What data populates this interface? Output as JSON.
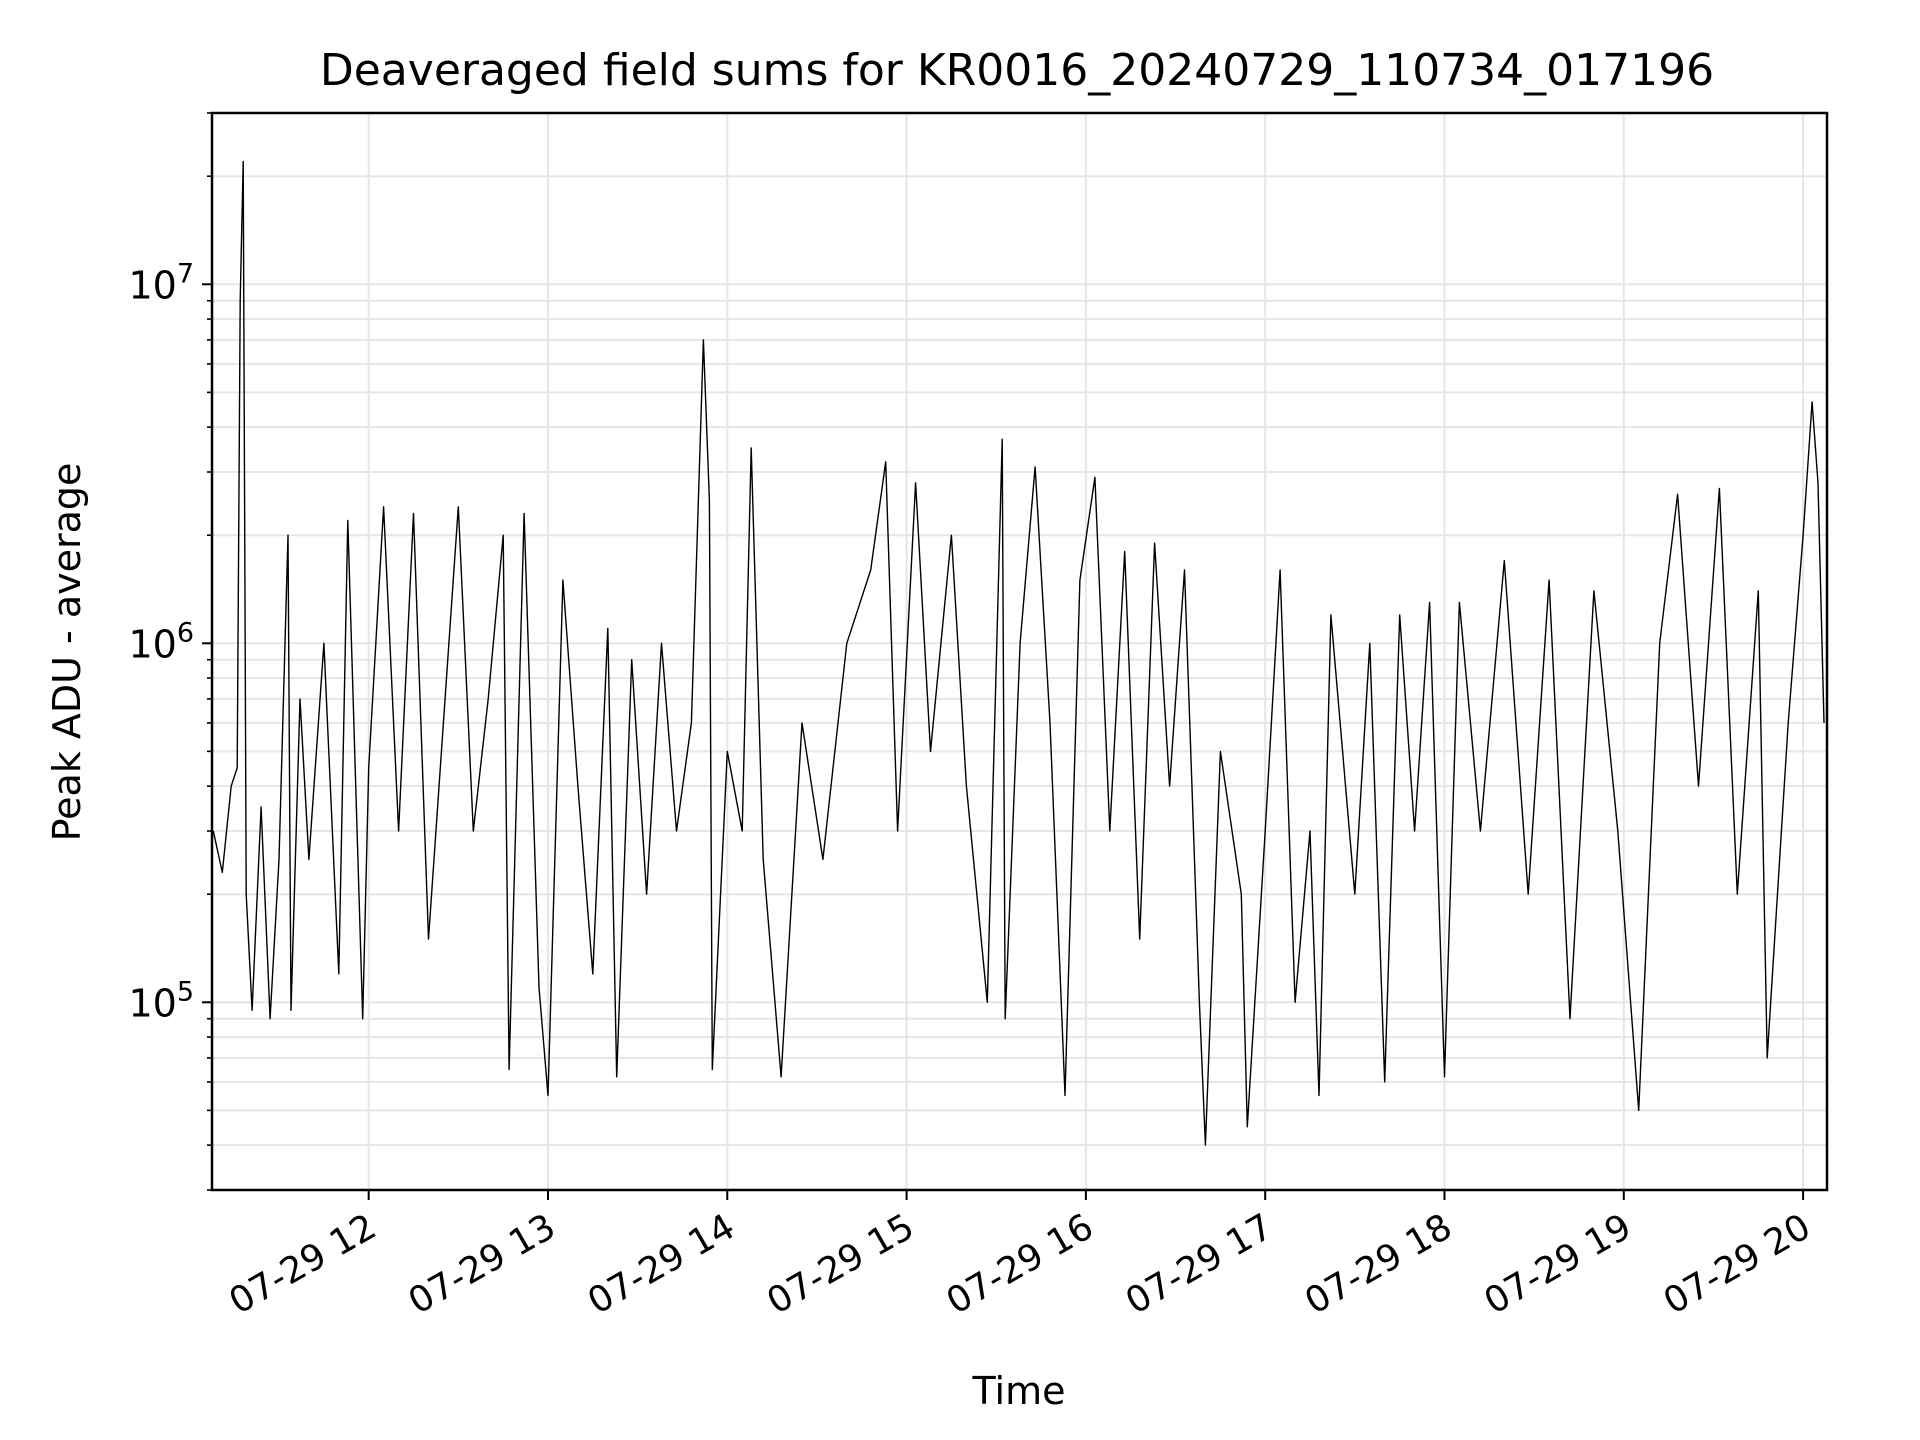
{
  "chart_data": {
    "type": "line",
    "title": "Deaveraged field sums for KR0016_20240729_110734_017196",
    "xlabel": "Time",
    "ylabel": "Peak ADU - average",
    "x_axis": {
      "type": "time",
      "range": [
        "2024-07-29 11:07:34",
        "2024-07-29 20:08:00"
      ],
      "ticks": [
        {
          "time": "2024-07-29 12:00",
          "label": "07-29 12"
        },
        {
          "time": "2024-07-29 13:00",
          "label": "07-29 13"
        },
        {
          "time": "2024-07-29 14:00",
          "label": "07-29 14"
        },
        {
          "time": "2024-07-29 15:00",
          "label": "07-29 15"
        },
        {
          "time": "2024-07-29 16:00",
          "label": "07-29 16"
        },
        {
          "time": "2024-07-29 17:00",
          "label": "07-29 17"
        },
        {
          "time": "2024-07-29 18:00",
          "label": "07-29 18"
        },
        {
          "time": "2024-07-29 19:00",
          "label": "07-29 19"
        },
        {
          "time": "2024-07-29 20:00",
          "label": "07-29 20"
        }
      ]
    },
    "y_axis": {
      "scale": "log",
      "range": [
        30000,
        30000000
      ],
      "ticks": [
        {
          "value": 100000,
          "base": "10",
          "exp": "5"
        },
        {
          "value": 1000000,
          "base": "10",
          "exp": "6"
        },
        {
          "value": 10000000,
          "base": "10",
          "exp": "7"
        }
      ]
    },
    "grid": true,
    "series": [
      {
        "color": "#000000",
        "points": [
          [
            "2024-07-29 11:08",
            300000
          ],
          [
            "2024-07-29 11:11",
            230000
          ],
          [
            "2024-07-29 11:14",
            400000
          ],
          [
            "2024-07-29 11:16",
            450000
          ],
          [
            "2024-07-29 11:17",
            9000000
          ],
          [
            "2024-07-29 11:18",
            22000000
          ],
          [
            "2024-07-29 11:19",
            200000
          ],
          [
            "2024-07-29 11:21",
            95000
          ],
          [
            "2024-07-29 11:24",
            350000
          ],
          [
            "2024-07-29 11:27",
            90000
          ],
          [
            "2024-07-29 11:30",
            250000
          ],
          [
            "2024-07-29 11:33",
            2000000
          ],
          [
            "2024-07-29 11:34",
            95000
          ],
          [
            "2024-07-29 11:37",
            700000
          ],
          [
            "2024-07-29 11:40",
            250000
          ],
          [
            "2024-07-29 11:45",
            1000000
          ],
          [
            "2024-07-29 11:50",
            120000
          ],
          [
            "2024-07-29 11:53",
            2200000
          ],
          [
            "2024-07-29 11:58",
            90000
          ],
          [
            "2024-07-29 12:00",
            450000
          ],
          [
            "2024-07-29 12:05",
            2400000
          ],
          [
            "2024-07-29 12:10",
            300000
          ],
          [
            "2024-07-29 12:15",
            2300000
          ],
          [
            "2024-07-29 12:20",
            150000
          ],
          [
            "2024-07-29 12:25",
            600000
          ],
          [
            "2024-07-29 12:30",
            2400000
          ],
          [
            "2024-07-29 12:35",
            300000
          ],
          [
            "2024-07-29 12:40",
            700000
          ],
          [
            "2024-07-29 12:45",
            2000000
          ],
          [
            "2024-07-29 12:47",
            65000
          ],
          [
            "2024-07-29 12:52",
            2300000
          ],
          [
            "2024-07-29 12:57",
            110000
          ],
          [
            "2024-07-29 13:00",
            55000
          ],
          [
            "2024-07-29 13:05",
            1500000
          ],
          [
            "2024-07-29 13:10",
            400000
          ],
          [
            "2024-07-29 13:15",
            120000
          ],
          [
            "2024-07-29 13:20",
            1100000
          ],
          [
            "2024-07-29 13:23",
            62000
          ],
          [
            "2024-07-29 13:28",
            900000
          ],
          [
            "2024-07-29 13:33",
            200000
          ],
          [
            "2024-07-29 13:38",
            1000000
          ],
          [
            "2024-07-29 13:43",
            300000
          ],
          [
            "2024-07-29 13:48",
            600000
          ],
          [
            "2024-07-29 13:52",
            7000000
          ],
          [
            "2024-07-29 13:54",
            2500000
          ],
          [
            "2024-07-29 13:55",
            65000
          ],
          [
            "2024-07-29 14:00",
            500000
          ],
          [
            "2024-07-29 14:05",
            300000
          ],
          [
            "2024-07-29 14:08",
            3500000
          ],
          [
            "2024-07-29 14:12",
            250000
          ],
          [
            "2024-07-29 14:18",
            62000
          ],
          [
            "2024-07-29 14:25",
            600000
          ],
          [
            "2024-07-29 14:32",
            250000
          ],
          [
            "2024-07-29 14:40",
            1000000
          ],
          [
            "2024-07-29 14:48",
            1600000
          ],
          [
            "2024-07-29 14:53",
            3200000
          ],
          [
            "2024-07-29 14:57",
            300000
          ],
          [
            "2024-07-29 15:03",
            2800000
          ],
          [
            "2024-07-29 15:08",
            500000
          ],
          [
            "2024-07-29 15:15",
            2000000
          ],
          [
            "2024-07-29 15:20",
            400000
          ],
          [
            "2024-07-29 15:27",
            100000
          ],
          [
            "2024-07-29 15:32",
            3700000
          ],
          [
            "2024-07-29 15:33",
            90000
          ],
          [
            "2024-07-29 15:38",
            1000000
          ],
          [
            "2024-07-29 15:43",
            3100000
          ],
          [
            "2024-07-29 15:48",
            600000
          ],
          [
            "2024-07-29 15:53",
            55000
          ],
          [
            "2024-07-29 15:58",
            1500000
          ],
          [
            "2024-07-29 16:03",
            2900000
          ],
          [
            "2024-07-29 16:08",
            300000
          ],
          [
            "2024-07-29 16:13",
            1800000
          ],
          [
            "2024-07-29 16:18",
            150000
          ],
          [
            "2024-07-29 16:23",
            1900000
          ],
          [
            "2024-07-29 16:28",
            400000
          ],
          [
            "2024-07-29 16:33",
            1600000
          ],
          [
            "2024-07-29 16:38",
            100000
          ],
          [
            "2024-07-29 16:40",
            40000
          ],
          [
            "2024-07-29 16:45",
            500000
          ],
          [
            "2024-07-29 16:52",
            200000
          ],
          [
            "2024-07-29 16:54",
            45000
          ],
          [
            "2024-07-29 17:00",
            300000
          ],
          [
            "2024-07-29 17:05",
            1600000
          ],
          [
            "2024-07-29 17:10",
            100000
          ],
          [
            "2024-07-29 17:15",
            300000
          ],
          [
            "2024-07-29 17:18",
            55000
          ],
          [
            "2024-07-29 17:22",
            1200000
          ],
          [
            "2024-07-29 17:30",
            200000
          ],
          [
            "2024-07-29 17:35",
            1000000
          ],
          [
            "2024-07-29 17:40",
            60000
          ],
          [
            "2024-07-29 17:45",
            1200000
          ],
          [
            "2024-07-29 17:50",
            300000
          ],
          [
            "2024-07-29 17:55",
            1300000
          ],
          [
            "2024-07-29 18:00",
            62000
          ],
          [
            "2024-07-29 18:05",
            1300000
          ],
          [
            "2024-07-29 18:12",
            300000
          ],
          [
            "2024-07-29 18:20",
            1700000
          ],
          [
            "2024-07-29 18:28",
            200000
          ],
          [
            "2024-07-29 18:35",
            1500000
          ],
          [
            "2024-07-29 18:42",
            90000
          ],
          [
            "2024-07-29 18:50",
            1400000
          ],
          [
            "2024-07-29 18:58",
            300000
          ],
          [
            "2024-07-29 19:05",
            50000
          ],
          [
            "2024-07-29 19:12",
            1000000
          ],
          [
            "2024-07-29 19:18",
            2600000
          ],
          [
            "2024-07-29 19:25",
            400000
          ],
          [
            "2024-07-29 19:32",
            2700000
          ],
          [
            "2024-07-29 19:38",
            200000
          ],
          [
            "2024-07-29 19:45",
            1400000
          ],
          [
            "2024-07-29 19:48",
            70000
          ],
          [
            "2024-07-29 19:55",
            600000
          ],
          [
            "2024-07-29 20:00",
            2000000
          ],
          [
            "2024-07-29 20:03",
            4700000
          ],
          [
            "2024-07-29 20:05",
            2800000
          ],
          [
            "2024-07-29 20:07",
            600000
          ]
        ]
      }
    ]
  }
}
